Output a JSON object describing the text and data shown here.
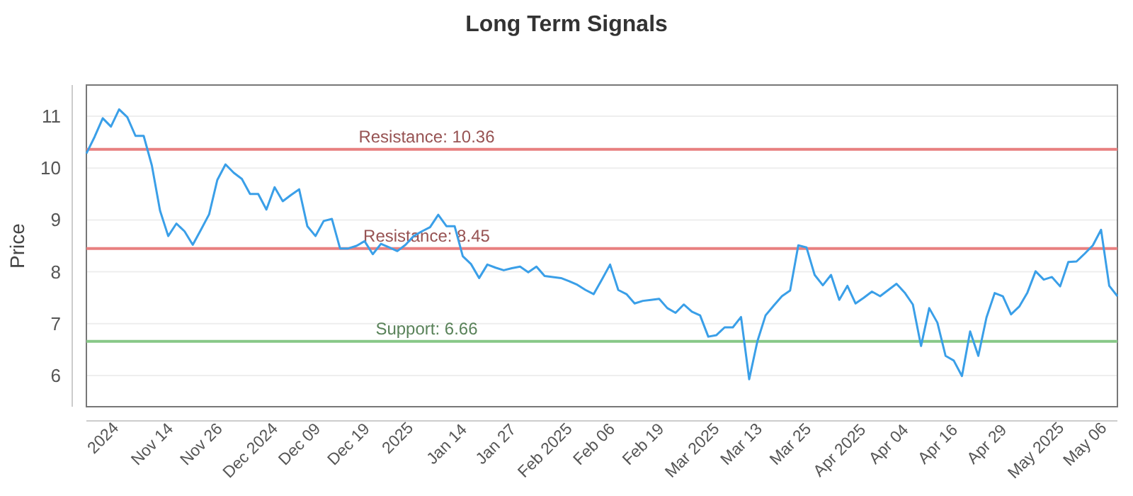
{
  "chart_data": {
    "type": "line",
    "title": "Long Term Signals",
    "ylabel": "Price",
    "categories": [
      null,
      null,
      "2024",
      null,
      null,
      null,
      null,
      null,
      "Nov 14",
      null,
      null,
      null,
      null,
      null,
      "Nov 26",
      null,
      null,
      null,
      null,
      null,
      "Dec 2024",
      null,
      null,
      null,
      null,
      null,
      "Dec 09",
      null,
      null,
      null,
      null,
      null,
      "Dec 19",
      null,
      null,
      null,
      null,
      null,
      "2025",
      null,
      null,
      null,
      null,
      null,
      "Jan 14",
      null,
      null,
      null,
      null,
      null,
      "Jan 27",
      null,
      null,
      null,
      null,
      null,
      "Feb 2025",
      null,
      null,
      null,
      null,
      null,
      "Feb 06",
      null,
      null,
      null,
      null,
      null,
      "Feb 19",
      null,
      null,
      null,
      null,
      null,
      "Mar 2025",
      null,
      null,
      null,
      null,
      null,
      "Mar 13",
      null,
      null,
      null,
      null,
      null,
      "Mar 25",
      null,
      null,
      null,
      null,
      null,
      "Apr 2025",
      null,
      null,
      null,
      null,
      null,
      "Apr 04",
      null,
      null,
      null,
      null,
      null,
      "Apr 16",
      null,
      null,
      null,
      null,
      null,
      "Apr 29",
      null,
      null,
      null,
      null,
      null,
      "May 2025",
      null,
      null,
      null,
      null,
      null,
      "May 06",
      null,
      null,
      null,
      null
    ],
    "series": [
      {
        "color": "#3a9fe8",
        "values": [
          10.28,
          10.6,
          10.96,
          10.8,
          11.13,
          10.98,
          10.62,
          10.62,
          10.05,
          9.18,
          8.69,
          8.93,
          8.78,
          8.52,
          8.81,
          9.11,
          9.77,
          10.07,
          9.91,
          9.79,
          9.5,
          9.5,
          9.2,
          9.63,
          9.36,
          9.48,
          9.59,
          8.88,
          8.69,
          8.98,
          9.02,
          8.45,
          8.45,
          8.5,
          8.59,
          8.34,
          8.54,
          8.47,
          8.4,
          8.52,
          8.69,
          8.78,
          8.86,
          9.1,
          8.88,
          8.88,
          8.3,
          8.15,
          7.88,
          8.14,
          8.08,
          8.03,
          8.07,
          8.1,
          7.99,
          8.1,
          7.92,
          7.9,
          7.88,
          7.82,
          7.75,
          7.65,
          7.57,
          7.85,
          8.14,
          7.65,
          7.57,
          7.39,
          7.44,
          7.46,
          7.48,
          7.3,
          7.21,
          7.37,
          7.23,
          7.16,
          6.75,
          6.78,
          6.93,
          6.93,
          7.13,
          5.93,
          6.66,
          7.16,
          7.35,
          7.53,
          7.64,
          8.51,
          8.47,
          7.94,
          7.74,
          7.94,
          7.46,
          7.73,
          7.39,
          7.5,
          7.62,
          7.53,
          7.65,
          7.77,
          7.6,
          7.37,
          6.57,
          7.3,
          7.02,
          6.38,
          6.29,
          5.99,
          6.85,
          6.38,
          7.12,
          7.59,
          7.53,
          7.18,
          7.33,
          7.6,
          8.01,
          7.85,
          7.9,
          7.72,
          8.19,
          8.2,
          8.35,
          8.51,
          8.81,
          7.73,
          7.53
        ]
      }
    ],
    "ylim": [
      5.4,
      11.6
    ],
    "yticks": [
      6,
      7,
      8,
      9,
      10,
      11
    ],
    "grid": "y",
    "marker": "none",
    "line_style": "solid",
    "ref_lines": [
      {
        "axis": "y",
        "value": 10.36,
        "label": "Resistance: 10.36",
        "color": "#e88080"
      },
      {
        "axis": "y",
        "value": 8.45,
        "label": "Resistance: 8.45",
        "color": "#e88080"
      },
      {
        "axis": "y",
        "value": 6.66,
        "label": "Support: 6.66",
        "color": "#88c888"
      }
    ]
  }
}
